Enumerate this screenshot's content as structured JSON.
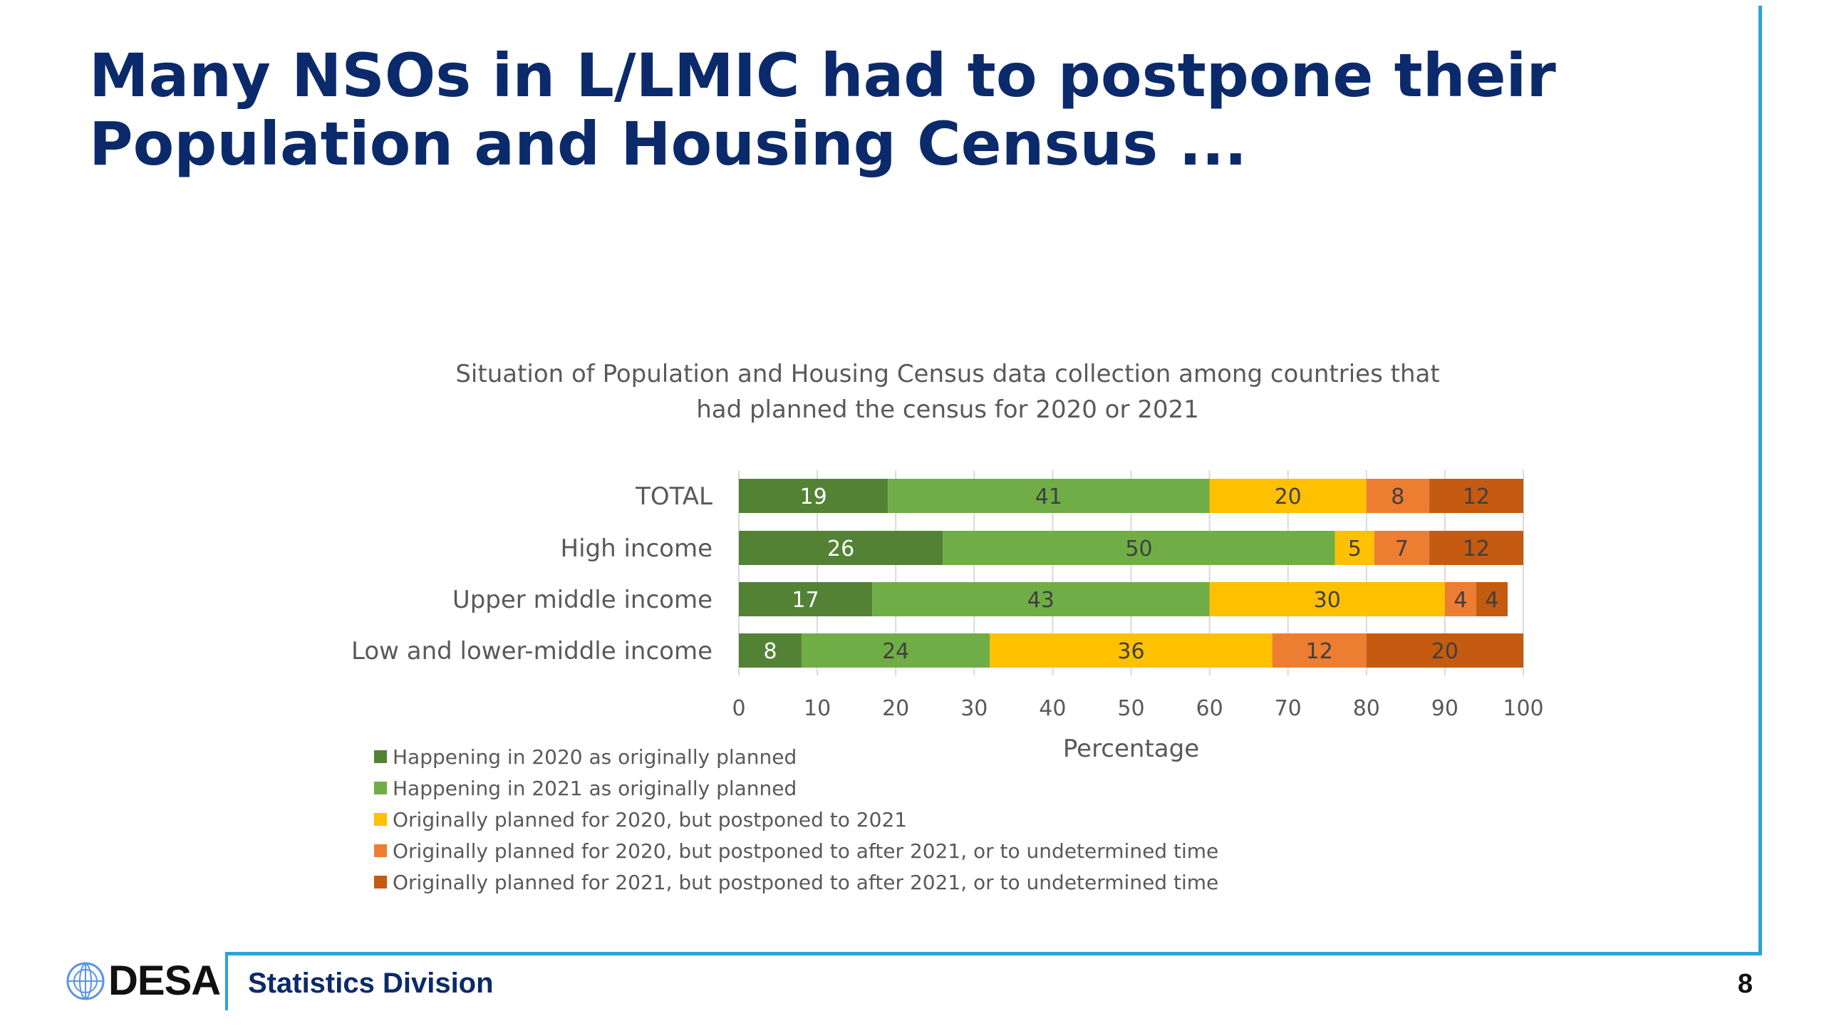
{
  "slide": {
    "title_line1": "Many NSOs in L/LMIC had to postpone their",
    "title_line2": "Population and Housing Census ...",
    "footer": {
      "org": "DESA",
      "division": "Statistics Division",
      "page_number": "8"
    }
  },
  "colors": {
    "title": "#0b2a6b",
    "accent_rule": "#2aa3d8"
  },
  "chart_data": {
    "type": "bar",
    "orientation": "horizontal",
    "stacked": true,
    "title_line1": "Situation of Population and Housing Census data collection among countries that",
    "title_line2": "had planned the census for 2020 or 2021",
    "xlabel": "Percentage",
    "ylabel": "",
    "xlim": [
      0,
      100
    ],
    "xticks": [
      0,
      10,
      20,
      30,
      40,
      50,
      60,
      70,
      80,
      90,
      100
    ],
    "grid": "vertical",
    "legend_position": "bottom-left",
    "categories": [
      "TOTAL",
      "High income",
      "Upper middle income",
      "Low and lower-middle income"
    ],
    "series": [
      {
        "name": "Happening in 2020 as originally planned",
        "color": "#548235",
        "values": [
          19,
          26,
          17,
          8
        ]
      },
      {
        "name": "Happening in 2021 as originally planned",
        "color": "#70ad47",
        "values": [
          41,
          50,
          43,
          24
        ]
      },
      {
        "name": "Originally planned for 2020, but postponed to 2021",
        "color": "#ffc000",
        "values": [
          20,
          5,
          30,
          36
        ]
      },
      {
        "name": "Originally planned for 2020, but postponed to after 2021, or to undetermined time",
        "color": "#ed7d31",
        "values": [
          8,
          7,
          4,
          12
        ]
      },
      {
        "name": "Originally planned for 2021, but postponed to after 2021, or to undetermined time",
        "color": "#c55a11",
        "values": [
          12,
          12,
          4,
          20
        ]
      }
    ]
  }
}
